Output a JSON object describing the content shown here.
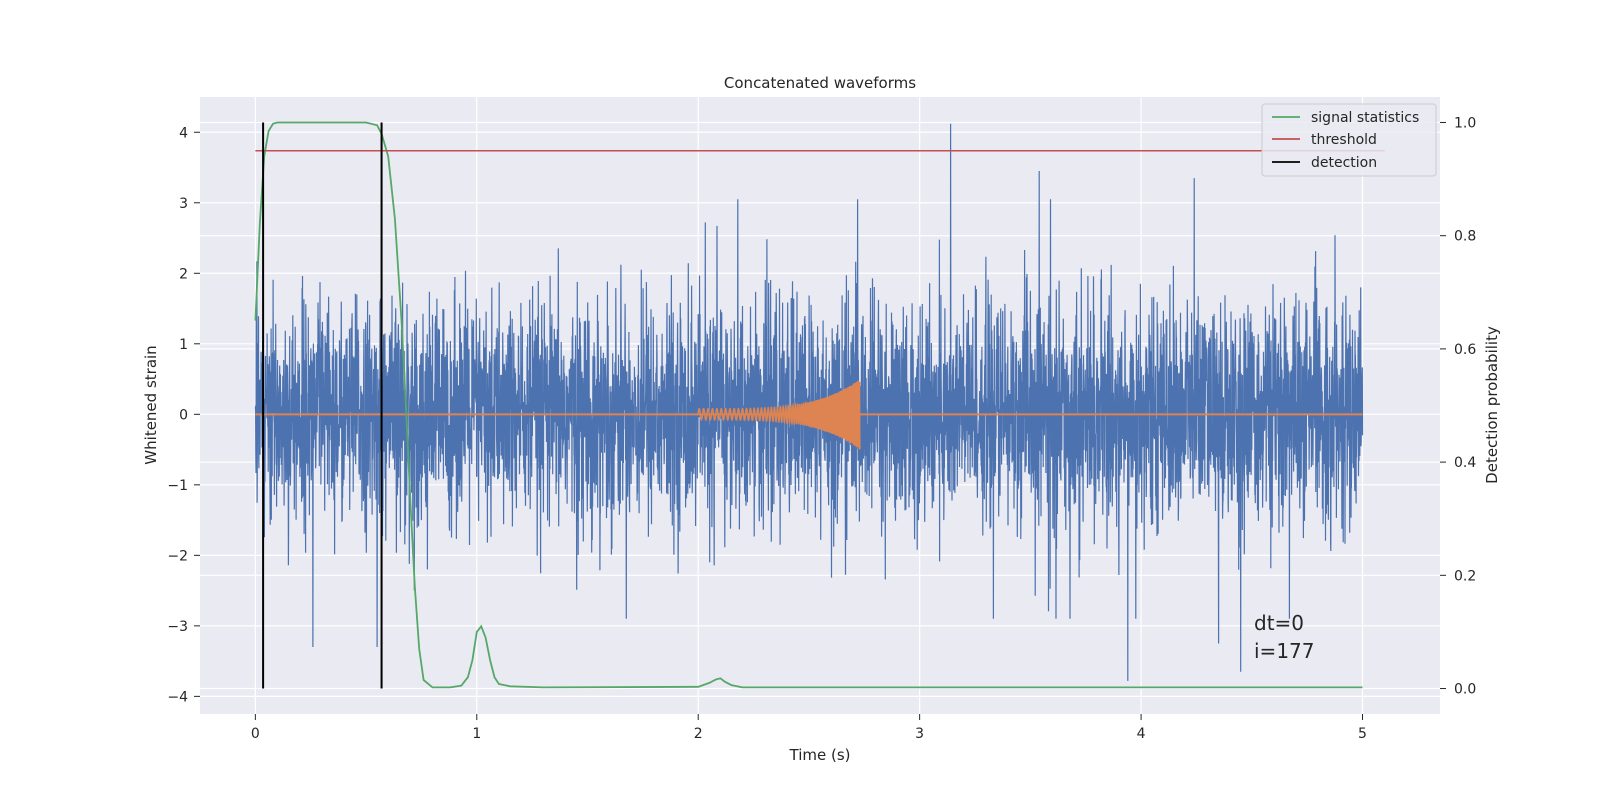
{
  "chart_data": {
    "type": "line",
    "title": "Concatenated waveforms",
    "xlabel": "Time (s)",
    "ylabel": "Whitened strain",
    "ylabel_right": "Detection probability",
    "xlim": [
      -0.25,
      5.35
    ],
    "ylim": [
      -4.25,
      4.5
    ],
    "ylim_right": [
      -0.045,
      1.045
    ],
    "xticks": [
      0,
      1,
      2,
      3,
      4,
      5
    ],
    "xtick_labels": [
      "0",
      "1",
      "2",
      "3",
      "4",
      "5"
    ],
    "yticks": [
      -4,
      -3,
      -2,
      -1,
      0,
      1,
      2,
      3,
      4
    ],
    "ytick_labels": [
      "−4",
      "−3",
      "−2",
      "−1",
      "0",
      "1",
      "2",
      "3",
      "4"
    ],
    "yticks_right": [
      0.0,
      0.2,
      0.4,
      0.6,
      0.8,
      1.0
    ],
    "ytick_labels_right": [
      "0.0",
      "0.2",
      "0.4",
      "0.6",
      "0.8",
      "1.0"
    ],
    "grid": true,
    "legend": {
      "position": "top-right"
    },
    "colors": {
      "strain": "#4c72b0",
      "template": "#dd8452",
      "signal": "#55a868",
      "threshold": "#c44e52",
      "detection": "#000000",
      "background": "#eaeaf2",
      "grid": "#ffffff"
    },
    "series": [
      {
        "name": "",
        "axis": "left",
        "kind": "noise",
        "x_range": [
          0,
          5
        ],
        "std": 0.75,
        "spikes": [
          {
            "x": 3.14,
            "y": 4.12
          },
          {
            "x": 3.94,
            "y": -3.78
          },
          {
            "x": 4.45,
            "y": -3.65
          },
          {
            "x": 0.26,
            "y": -3.3
          },
          {
            "x": 4.24,
            "y": 3.35
          },
          {
            "x": 3.54,
            "y": 3.45
          },
          {
            "x": 0.55,
            "y": -3.3
          },
          {
            "x": 4.35,
            "y": -3.25
          }
        ]
      },
      {
        "name": "",
        "axis": "left",
        "kind": "chirp",
        "x_range": [
          2.0,
          2.73
        ],
        "amplitude_start": 0.08,
        "amplitude_end": 0.5
      },
      {
        "name": "signal statistics",
        "axis": "right",
        "x": [
          0.0,
          0.02,
          0.04,
          0.06,
          0.08,
          0.1,
          0.15,
          0.3,
          0.45,
          0.5,
          0.55,
          0.57,
          0.6,
          0.63,
          0.66,
          0.68,
          0.7,
          0.72,
          0.74,
          0.76,
          0.8,
          0.88,
          0.93,
          0.96,
          0.98,
          1.0,
          1.02,
          1.04,
          1.06,
          1.08,
          1.1,
          1.15,
          1.3,
          2.0,
          2.05,
          2.08,
          2.1,
          2.12,
          2.15,
          2.2,
          2.5,
          5.0
        ],
        "y": [
          0.65,
          0.82,
          0.94,
          0.985,
          0.998,
          1.0,
          1.0,
          1.0,
          1.0,
          1.0,
          0.995,
          0.98,
          0.94,
          0.83,
          0.65,
          0.5,
          0.33,
          0.18,
          0.07,
          0.015,
          0.002,
          0.002,
          0.005,
          0.02,
          0.05,
          0.1,
          0.11,
          0.09,
          0.05,
          0.02,
          0.008,
          0.004,
          0.002,
          0.003,
          0.01,
          0.016,
          0.018,
          0.012,
          0.006,
          0.002,
          0.002,
          0.002
        ]
      },
      {
        "name": "threshold",
        "axis": "right",
        "x": [
          0.0,
          5.1
        ],
        "y": [
          0.95,
          0.95
        ]
      },
      {
        "name": "detection",
        "axis": "right",
        "kind": "vlines",
        "x": [
          0.035,
          0.57
        ],
        "y_range": [
          0.0,
          1.0
        ]
      },
      {
        "name": "",
        "axis": "left",
        "kind": "hline",
        "y": 0
      }
    ],
    "annotation": [
      "dt=0",
      "i=177"
    ]
  }
}
